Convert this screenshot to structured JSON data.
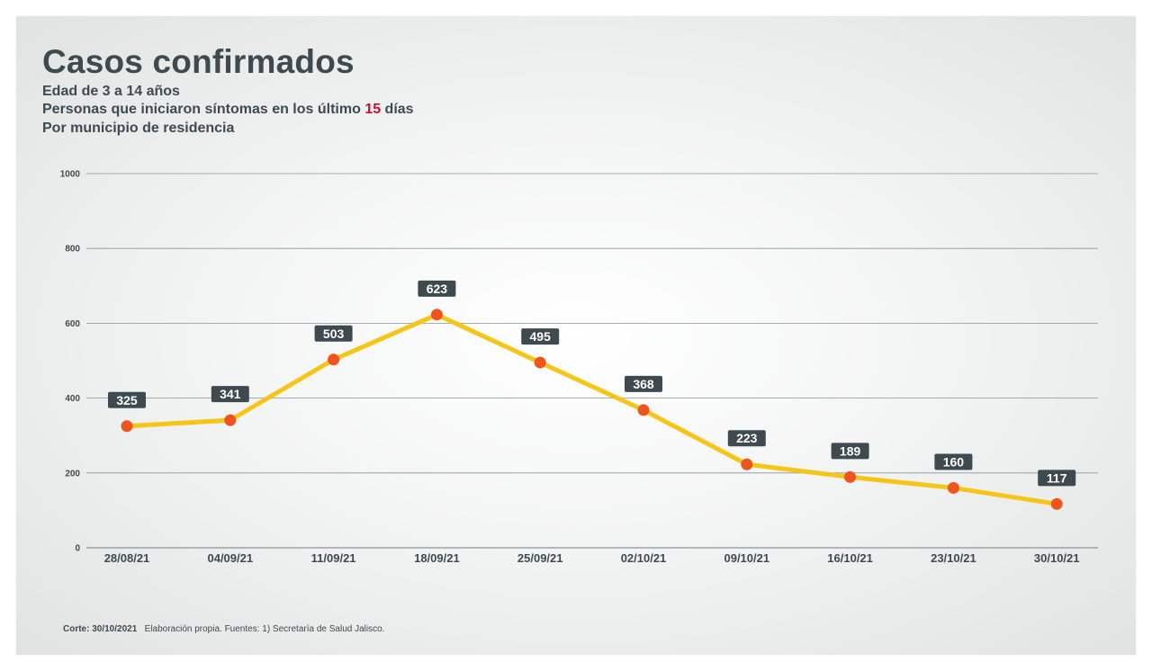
{
  "header": {
    "title": "Casos confirmados",
    "subtitle_1": "Edad de 3 a 14 años",
    "subtitle_2_prefix": "Personas que iniciaron síntomas en los último ",
    "subtitle_2_highlight": "15",
    "subtitle_2_suffix": " días",
    "subtitle_3": "Por municipio de residencia"
  },
  "footer": {
    "cutoff_label": "Corte: 30/10/2021",
    "source": "Elaboración propia.  Fuentes:  1) Secretaría de Salud Jalisco."
  },
  "colors": {
    "line": "#f5c518",
    "marker": "#f0541e",
    "label_bg": "#3f4a50",
    "grid": "#8d9498",
    "text": "#3f4a50",
    "highlight": "#c8102e"
  },
  "chart_data": {
    "type": "line",
    "title": "Casos confirmados",
    "xlabel": "",
    "ylabel": "",
    "categories": [
      "28/08/21",
      "04/09/21",
      "11/09/21",
      "18/09/21",
      "25/09/21",
      "02/10/21",
      "09/10/21",
      "16/10/21",
      "23/10/21",
      "30/10/21"
    ],
    "series": [
      {
        "values": [
          325,
          341,
          503,
          623,
          495,
          368,
          223,
          189,
          160,
          117
        ]
      }
    ],
    "ylim": [
      0,
      1000
    ],
    "yticks": [
      0,
      200,
      400,
      600,
      800,
      1000
    ],
    "grid": true,
    "legend": "none"
  }
}
